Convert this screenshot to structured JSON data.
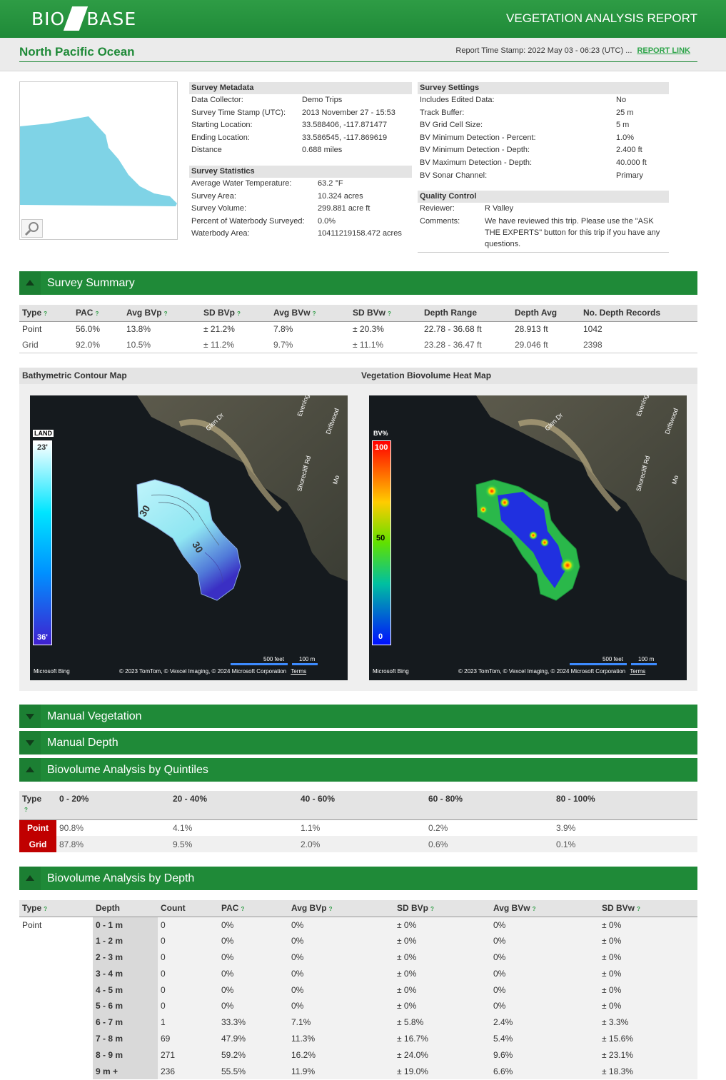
{
  "header": {
    "logo_left": "BIO",
    "logo_right": "BASE",
    "report_title": "VEGETATION ANALYSIS REPORT"
  },
  "location": {
    "title": "North Pacific Ocean",
    "stamp": "Report Time Stamp: 2022 May 03 - 06:23 (UTC) ...",
    "report_link": "REPORT LINK"
  },
  "survey_metadata": {
    "title": "Survey Metadata",
    "rows": [
      {
        "k": "Data Collector:",
        "v": "Demo Trips"
      },
      {
        "k": "Survey Time Stamp (UTC):",
        "v": "2013 November 27 - 15:53"
      },
      {
        "k": "Starting Location:",
        "v": "33.588406, -117.871477"
      },
      {
        "k": "Ending Location:",
        "v": "33.586545, -117.869619"
      },
      {
        "k": "Distance",
        "v": "0.688 miles"
      }
    ]
  },
  "survey_statistics": {
    "title": "Survey Statistics",
    "rows": [
      {
        "k": "Average Water Temperature:",
        "v": "63.2 °F"
      },
      {
        "k": "Survey Area:",
        "v": "10.324 acres"
      },
      {
        "k": "Survey Volume:",
        "v": "299.881 acre ft"
      },
      {
        "k": "Percent of Waterbody Surveyed:",
        "v": "0.0%"
      },
      {
        "k": "Waterbody Area:",
        "v": "10411219158.472 acres"
      }
    ]
  },
  "survey_settings": {
    "title": "Survey Settings",
    "rows": [
      {
        "k": "Includes Edited Data:",
        "v": "No"
      },
      {
        "k": "Track Buffer:",
        "v": "25 m"
      },
      {
        "k": "BV Grid Cell Size:",
        "v": "5 m"
      },
      {
        "k": "BV Minimum Detection - Percent:",
        "v": "1.0%"
      },
      {
        "k": "BV Minimum Detection - Depth:",
        "v": "2.400 ft"
      },
      {
        "k": "BV Maximum Detection - Depth:",
        "v": "40.000 ft"
      },
      {
        "k": "BV Sonar Channel:",
        "v": "Primary"
      }
    ]
  },
  "quality_control": {
    "title": "Quality Control",
    "reviewer_k": "Reviewer:",
    "reviewer_v": "R Valley",
    "comments_k": "Comments:",
    "comments_v": "We have reviewed this trip. Please use the \"ASK THE EXPERTS\" button for this trip if you have any questions."
  },
  "sections": {
    "survey_summary": "Survey Summary",
    "manual_vegetation": "Manual Vegetation",
    "manual_depth": "Manual Depth",
    "quintiles": "Biovolume Analysis by Quintiles",
    "by_depth": "Biovolume Analysis by Depth"
  },
  "help_mark": "?",
  "summary": {
    "headers": [
      "Type",
      "PAC",
      "Avg BVp",
      "SD BVp",
      "Avg BVw",
      "SD BVw",
      "Depth Range",
      "Depth Avg",
      "No. Depth Records"
    ],
    "rows": [
      [
        "Point",
        "56.0%",
        "13.8%",
        "± 21.2%",
        "7.8%",
        "± 20.3%",
        "22.78 - 36.68 ft",
        "28.913 ft",
        "1042"
      ],
      [
        "Grid",
        "92.0%",
        "10.5%",
        "± 11.2%",
        "9.7%",
        "± 11.1%",
        "23.28 - 36.47 ft",
        "29.046 ft",
        "2398"
      ]
    ]
  },
  "maps": {
    "bathy_title": "Bathymetric Contour Map",
    "heat_title": "Vegetation Biovolume Heat Map",
    "bathy_legend_top": "LAND",
    "bathy_min": "23'",
    "bathy_max": "36'",
    "heat_legend_top": "BV%",
    "heat_max": "100",
    "heat_mid": "50",
    "heat_min": "0",
    "contour_label_1": "30",
    "contour_label_2": "30",
    "scale_feet": "500 feet",
    "scale_m": "100 m",
    "bing": "Microsoft Bing",
    "attribution": "© 2023 TomTom, © Vexcel Imaging, © 2024 Microsoft Corporation",
    "terms": "Terms",
    "streets": [
      "Glen Dr",
      "Evening",
      "Driftwood",
      "Shorecliff Rd",
      "Mo"
    ]
  },
  "quintiles": {
    "headers": [
      "Type",
      "0 - 20%",
      "20 - 40%",
      "40 - 60%",
      "60 - 80%",
      "80 - 100%"
    ],
    "rows": [
      [
        "Point",
        "90.8%",
        "4.1%",
        "1.1%",
        "0.2%",
        "3.9%"
      ],
      [
        "Grid",
        "87.8%",
        "9.5%",
        "2.0%",
        "0.6%",
        "0.1%"
      ]
    ]
  },
  "by_depth": {
    "headers": [
      "Type",
      "Depth",
      "Count",
      "PAC",
      "Avg BVp",
      "SD BVp",
      "Avg BVw",
      "SD BVw"
    ],
    "type": "Point",
    "rows": [
      [
        "0 - 1 m",
        "0",
        "0%",
        "0%",
        "± 0%",
        "0%",
        "± 0%"
      ],
      [
        "1 - 2 m",
        "0",
        "0%",
        "0%",
        "± 0%",
        "0%",
        "± 0%"
      ],
      [
        "2 - 3 m",
        "0",
        "0%",
        "0%",
        "± 0%",
        "0%",
        "± 0%"
      ],
      [
        "3 - 4 m",
        "0",
        "0%",
        "0%",
        "± 0%",
        "0%",
        "± 0%"
      ],
      [
        "4 - 5 m",
        "0",
        "0%",
        "0%",
        "± 0%",
        "0%",
        "± 0%"
      ],
      [
        "5 - 6 m",
        "0",
        "0%",
        "0%",
        "± 0%",
        "0%",
        "± 0%"
      ],
      [
        "6 - 7 m",
        "1",
        "33.3%",
        "7.1%",
        "± 5.8%",
        "2.4%",
        "± 3.3%"
      ],
      [
        "7 - 8 m",
        "69",
        "47.9%",
        "11.3%",
        "± 16.7%",
        "5.4%",
        "± 15.6%"
      ],
      [
        "8 - 9 m",
        "271",
        "59.2%",
        "16.2%",
        "± 24.0%",
        "9.6%",
        "± 23.1%"
      ],
      [
        "9 m +",
        "236",
        "55.5%",
        "11.9%",
        "± 19.0%",
        "6.6%",
        "± 18.3%"
      ]
    ]
  },
  "colors": {
    "brand_green": "#1f8a38",
    "link_green": "#2ea44a",
    "type_red": "#c00000"
  }
}
